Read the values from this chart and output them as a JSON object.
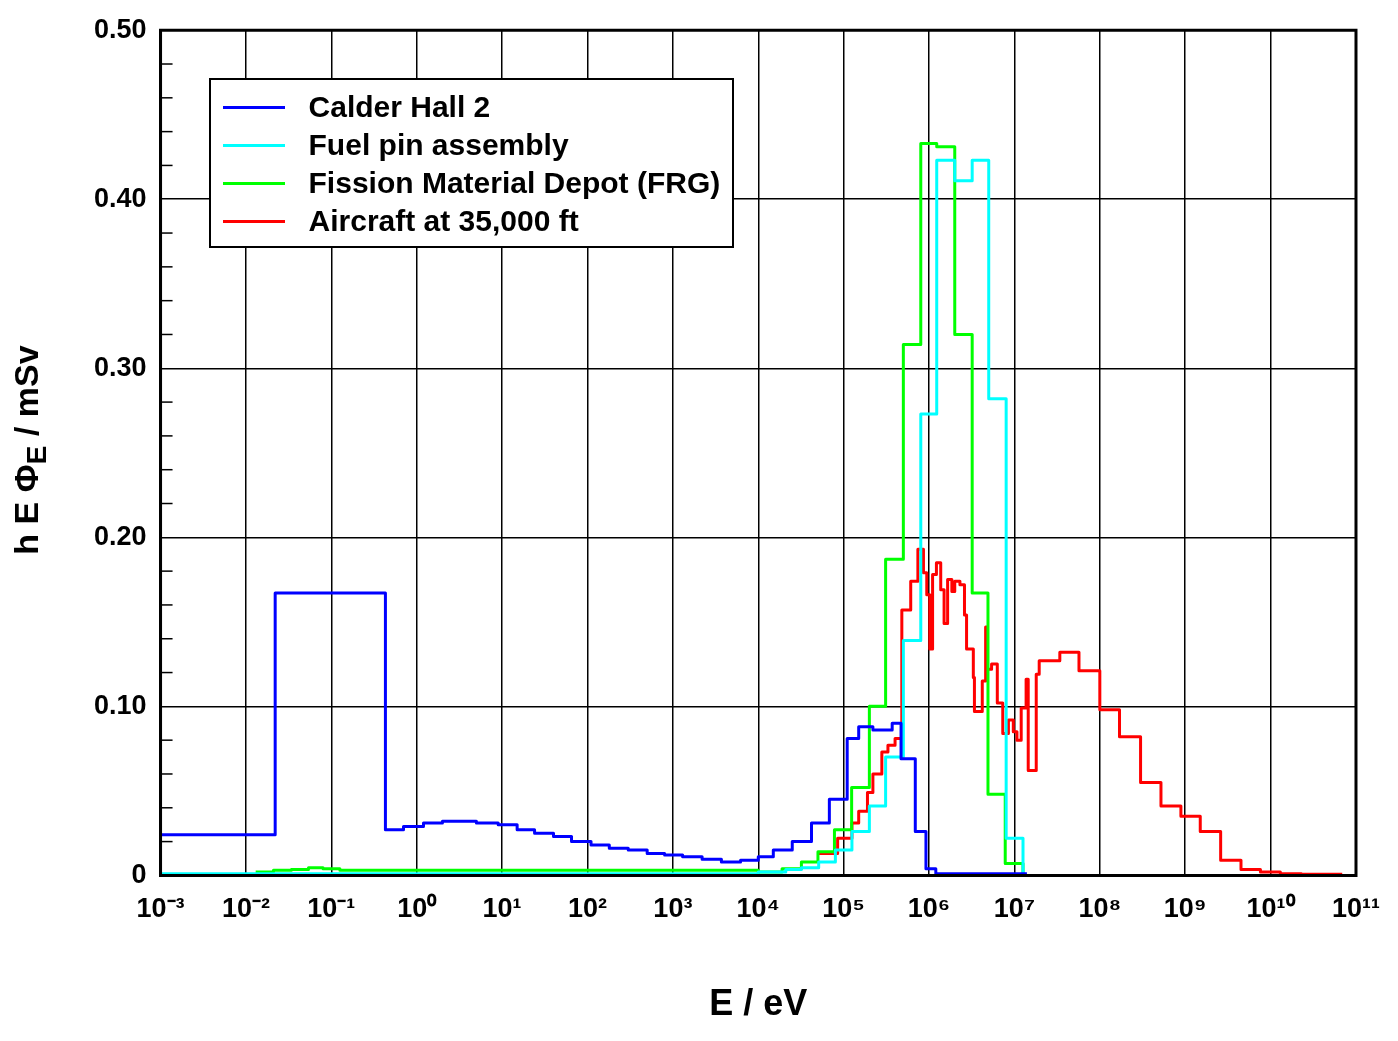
{
  "chart_data": {
    "type": "step",
    "xlabel": "E / eV",
    "ylabel": "h E Φ$_{E}$ / mSv",
    "log": "x",
    "grid": true,
    "legend": "top left",
    "xlim": [
      0.001,
      100000000000
    ],
    "ylim": [
      0,
      0.5
    ],
    "xticks": [
      {
        "value": 0.001,
        "label": "10⁻³"
      },
      {
        "value": 0.01,
        "label": "10⁻²"
      },
      {
        "value": 0.1,
        "label": "10⁻¹"
      },
      {
        "value": 1,
        "label": "10⁰"
      },
      {
        "value": 10,
        "label": "10¹"
      },
      {
        "value": 100,
        "label": "10²"
      },
      {
        "value": 1000,
        "label": "10³"
      },
      {
        "value": 10000,
        "label": "10⁴"
      },
      {
        "value": 100000,
        "label": "10⁵"
      },
      {
        "value": 1000000,
        "label": "10⁶"
      },
      {
        "value": 10000000,
        "label": "10⁷"
      },
      {
        "value": 100000000,
        "label": "10⁸"
      },
      {
        "value": 1000000000,
        "label": "10⁹"
      },
      {
        "value": 10000000000,
        "label": "10¹⁰"
      },
      {
        "value": 100000000000,
        "label": "10¹¹"
      }
    ],
    "yticks": [
      0,
      {
        "value": 0.02,
        "label": null
      },
      {
        "value": 0.04,
        "label": null
      },
      {
        "value": 0.06,
        "label": null
      },
      {
        "value": 0.08,
        "label": null
      },
      {
        "value": 0.1,
        "label": "0.10"
      },
      {
        "value": 0.12,
        "label": null
      },
      {
        "value": 0.14,
        "label": null
      },
      {
        "value": 0.16,
        "label": null
      },
      {
        "value": 0.18,
        "label": null
      },
      {
        "value": 0.2,
        "label": "0.20"
      },
      {
        "value": 0.22,
        "label": null
      },
      {
        "value": 0.24,
        "label": null
      },
      {
        "value": 0.26,
        "label": null
      },
      {
        "value": 0.28,
        "label": null
      },
      {
        "value": 0.3,
        "label": "0.30"
      },
      {
        "value": 0.32,
        "label": null
      },
      {
        "value": 0.34,
        "label": null
      },
      {
        "value": 0.36,
        "label": null
      },
      {
        "value": 0.38,
        "label": null
      },
      {
        "value": 0.4,
        "label": "0.40"
      },
      {
        "value": 0.42,
        "label": null
      },
      {
        "value": 0.44,
        "label": null
      },
      {
        "value": 0.46,
        "label": null
      },
      {
        "value": 0.48,
        "label": null
      },
      {
        "value": 0.5,
        "label": "0.50"
      }
    ],
    "series": [
      {
        "name": "Calder Hall 2",
        "color": "#0000ff",
        "x": [
          0.001,
          0.022,
          0.43,
          0.7,
          1.2,
          2,
          5,
          9,
          15,
          24,
          40,
          65,
          110,
          180,
          300,
          500,
          800,
          1300,
          2200,
          3700,
          6200,
          10000,
          15000,
          25000,
          42000,
          68000,
          110000,
          150000,
          220000,
          370000,
          470000,
          690000,
          920000,
          1200000,
          14000000
        ],
        "values": [
          0.024,
          0.167,
          0.027,
          0.029,
          0.031,
          0.032,
          0.031,
          0.03,
          0.027,
          0.025,
          0.023,
          0.02,
          0.018,
          0.016,
          0.015,
          0.013,
          0.012,
          0.011,
          0.0095,
          0.008,
          0.009,
          0.011,
          0.015,
          0.02,
          0.031,
          0.045,
          0.081,
          0.088,
          0.086,
          0.09,
          0.069,
          0.026,
          0.004,
          0.001,
          0.001
        ]
      },
      {
        "name": "Fuel pin assembly",
        "color": "#00ffff",
        "x": [
          0.001,
          10000,
          21000,
          32000,
          51000,
          80000,
          125000,
          200000,
          310000,
          500000,
          800000,
          1230000,
          2000000,
          3200000,
          5000000,
          8000000,
          12600000
        ],
        "values": [
          0.001,
          0.002,
          0.0035,
          0.0045,
          0.008,
          0.015,
          0.026,
          0.041,
          0.07,
          0.139,
          0.273,
          0.423,
          0.411,
          0.423,
          0.282,
          0.022,
          0
        ]
      },
      {
        "name": "Fission Material Depot (FRG)",
        "color": "#00ff00",
        "x": [
          0.013,
          0.021,
          0.034,
          0.054,
          0.08,
          0.126,
          10000,
          19000,
          32000,
          50000,
          78000,
          124000,
          200000,
          310000,
          500000,
          800000,
          1230000,
          2000000,
          3200000,
          4900000,
          7800000,
          12600000
        ],
        "values": [
          0.002,
          0.003,
          0.0035,
          0.0045,
          0.004,
          0.003,
          0.002,
          0.004,
          0.008,
          0.014,
          0.027,
          0.052,
          0.1,
          0.187,
          0.314,
          0.433,
          0.431,
          0.32,
          0.167,
          0.048,
          0.007,
          0
        ]
      },
      {
        "name": "Aircraft at 35,000 ft",
        "color": "#ff0000",
        "x": [
          50000,
          85000,
          125000,
          150000,
          190000,
          220000,
          280000,
          330000,
          400000,
          480000,
          610000,
          740000,
          860000,
          940000,
          1020000,
          1100000,
          1220000,
          1370000,
          1500000,
          1650000,
          1850000,
          2000000,
          2300000,
          2600000,
          2750000,
          3300000,
          3400000,
          4200000,
          4600000,
          4800000,
          5400000,
          6300000,
          7300000,
          8500000,
          9700000,
          10700000,
          12000000,
          13700000,
          14500000,
          18000000,
          19500000,
          34000000,
          57000000,
          100000000,
          170000000,
          300000000,
          520000000,
          890000000,
          1500000000,
          2600000000,
          4500000000,
          7600000000,
          13000000000,
          23000000000,
          69000000000
        ],
        "values": [
          0.013,
          0.022,
          0.031,
          0.038,
          0.049,
          0.06,
          0.073,
          0.077,
          0.081,
          0.157,
          0.174,
          0.193,
          0.179,
          0.166,
          0.134,
          0.178,
          0.185,
          0.169,
          0.149,
          0.175,
          0.168,
          0.174,
          0.172,
          0.154,
          0.134,
          0.117,
          0.097,
          0.115,
          0.147,
          0.122,
          0.125,
          0.102,
          0.084,
          0.092,
          0.085,
          0.08,
          0.099,
          0.116,
          0.062,
          0.119,
          0.127,
          0.132,
          0.121,
          0.098,
          0.082,
          0.055,
          0.041,
          0.035,
          0.026,
          0.009,
          0.0035,
          0.002,
          0.001,
          0.0007,
          0.0007
        ]
      }
    ]
  }
}
